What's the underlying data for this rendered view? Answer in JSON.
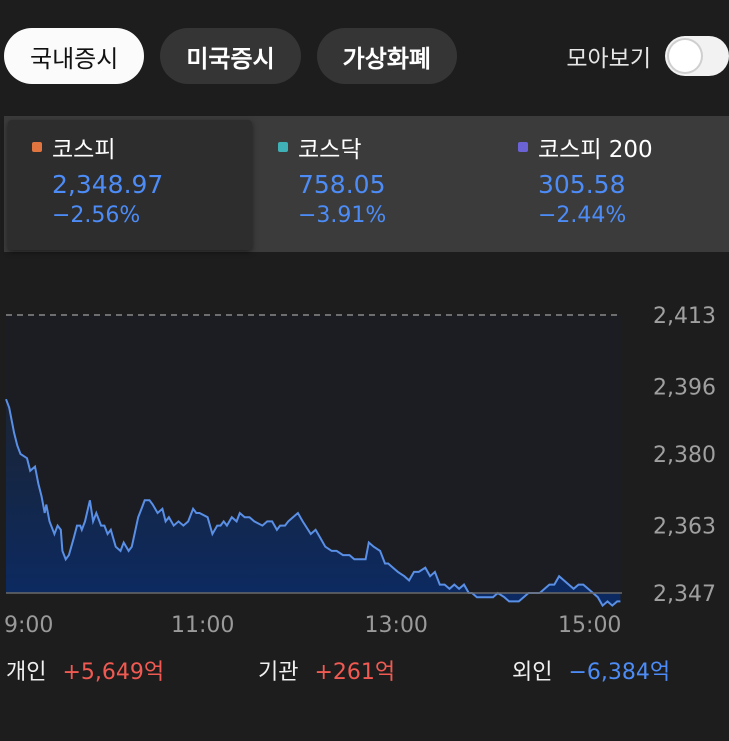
{
  "tabs": [
    {
      "label": "국내증시",
      "active": true
    },
    {
      "label": "미국증시",
      "active": false
    },
    {
      "label": "가상화폐",
      "active": false
    }
  ],
  "toggle": {
    "label": "모아보기",
    "on": false
  },
  "indices": [
    {
      "name": "코스피",
      "value": "2,348.97",
      "change": "−2.56%",
      "dot_color": "#e1753f",
      "selected": true
    },
    {
      "name": "코스닥",
      "value": "758.05",
      "change": "−3.91%",
      "dot_color": "#3fb0b5",
      "selected": false
    },
    {
      "name": "코스피 200",
      "value": "305.58",
      "change": "−2.44%",
      "dot_color": "#6b62d6",
      "selected": false
    }
  ],
  "chart_data": {
    "type": "area",
    "y_ticks": [
      "2,413",
      "2,396",
      "2,380",
      "2,363",
      "2,347"
    ],
    "y_tick_values": [
      2413,
      2396,
      2380,
      2363,
      2347
    ],
    "x_ticks": [
      "9:00",
      "11:00",
      "13:00",
      "15:00"
    ],
    "x_tick_values": [
      540,
      660,
      780,
      900
    ],
    "reference_line": 2413,
    "ylim": [
      2347,
      2413
    ],
    "xlim": [
      538,
      920
    ],
    "series": [
      {
        "x": [
          538,
          540,
          543,
          545,
          547,
          551,
          553,
          556,
          558,
          560,
          562,
          563,
          565,
          568,
          570,
          572,
          573,
          575,
          577,
          580,
          582,
          584,
          585,
          587,
          590,
          592,
          594,
          597,
          599,
          601,
          603,
          606,
          609,
          611,
          614,
          616,
          620,
          622,
          624,
          627,
          629,
          632,
          635,
          637,
          639,
          642,
          645,
          648,
          651,
          654,
          656,
          658,
          663,
          666,
          669,
          671,
          673,
          675,
          678,
          681,
          683,
          686,
          689,
          692,
          697,
          700,
          703,
          706,
          708,
          711,
          713,
          716,
          719,
          722,
          727,
          730,
          733,
          736,
          740,
          743,
          747,
          751,
          754,
          757,
          761,
          763,
          766,
          770,
          773,
          775,
          778,
          781,
          785,
          788,
          791,
          794,
          798,
          801,
          804,
          807,
          810,
          813,
          816,
          819,
          822,
          825,
          827,
          830,
          833,
          837,
          840,
          843,
          847,
          850,
          853,
          856,
          859,
          862,
          866,
          869,
          872,
          875,
          878,
          881,
          884,
          887,
          890,
          893,
          896,
          899,
          902,
          905,
          908,
          911,
          914,
          917,
          919
        ],
        "values": [
          2393,
          2391,
          2385,
          2382,
          2380,
          2379,
          2376,
          2377,
          2373,
          2370,
          2366,
          2368,
          2364,
          2361,
          2363,
          2362,
          2357,
          2355,
          2356,
          2360,
          2363,
          2363,
          2362,
          2364,
          2369,
          2364,
          2366,
          2363,
          2363,
          2361,
          2362,
          2358,
          2357,
          2359,
          2357,
          2358,
          2365,
          2367,
          2369,
          2369,
          2368,
          2366,
          2367,
          2364,
          2365,
          2363,
          2364,
          2363,
          2364,
          2367,
          2366,
          2366,
          2365,
          2361,
          2363,
          2363,
          2364,
          2363,
          2365,
          2364,
          2366,
          2365,
          2365,
          2364,
          2363,
          2364,
          2364,
          2362,
          2363,
          2363,
          2364,
          2365,
          2366,
          2364,
          2361,
          2362,
          2360,
          2358,
          2357,
          2357,
          2356,
          2356,
          2355,
          2355,
          2355,
          2359,
          2358,
          2357,
          2354,
          2354,
          2353,
          2352,
          2351,
          2350,
          2352,
          2352,
          2353,
          2351,
          2352,
          2349,
          2349,
          2348,
          2349,
          2348,
          2349,
          2347,
          2347,
          2346,
          2346,
          2346,
          2346,
          2347,
          2346,
          2345,
          2345,
          2345,
          2346,
          2347,
          2347,
          2347,
          2348,
          2349,
          2349,
          2351,
          2350,
          2349,
          2348,
          2349,
          2349,
          2348,
          2347,
          2346,
          2344,
          2345,
          2344,
          2345,
          2345
        ],
        "color": "#5a8fe6"
      }
    ]
  },
  "flows": [
    {
      "label": "개인",
      "value": "+5,649억",
      "color": "#f15a52"
    },
    {
      "label": "기관",
      "value": "+261억",
      "color": "#f15a52"
    },
    {
      "label": "외인",
      "value": "−6,384억",
      "color": "#4d8cf6"
    }
  ]
}
